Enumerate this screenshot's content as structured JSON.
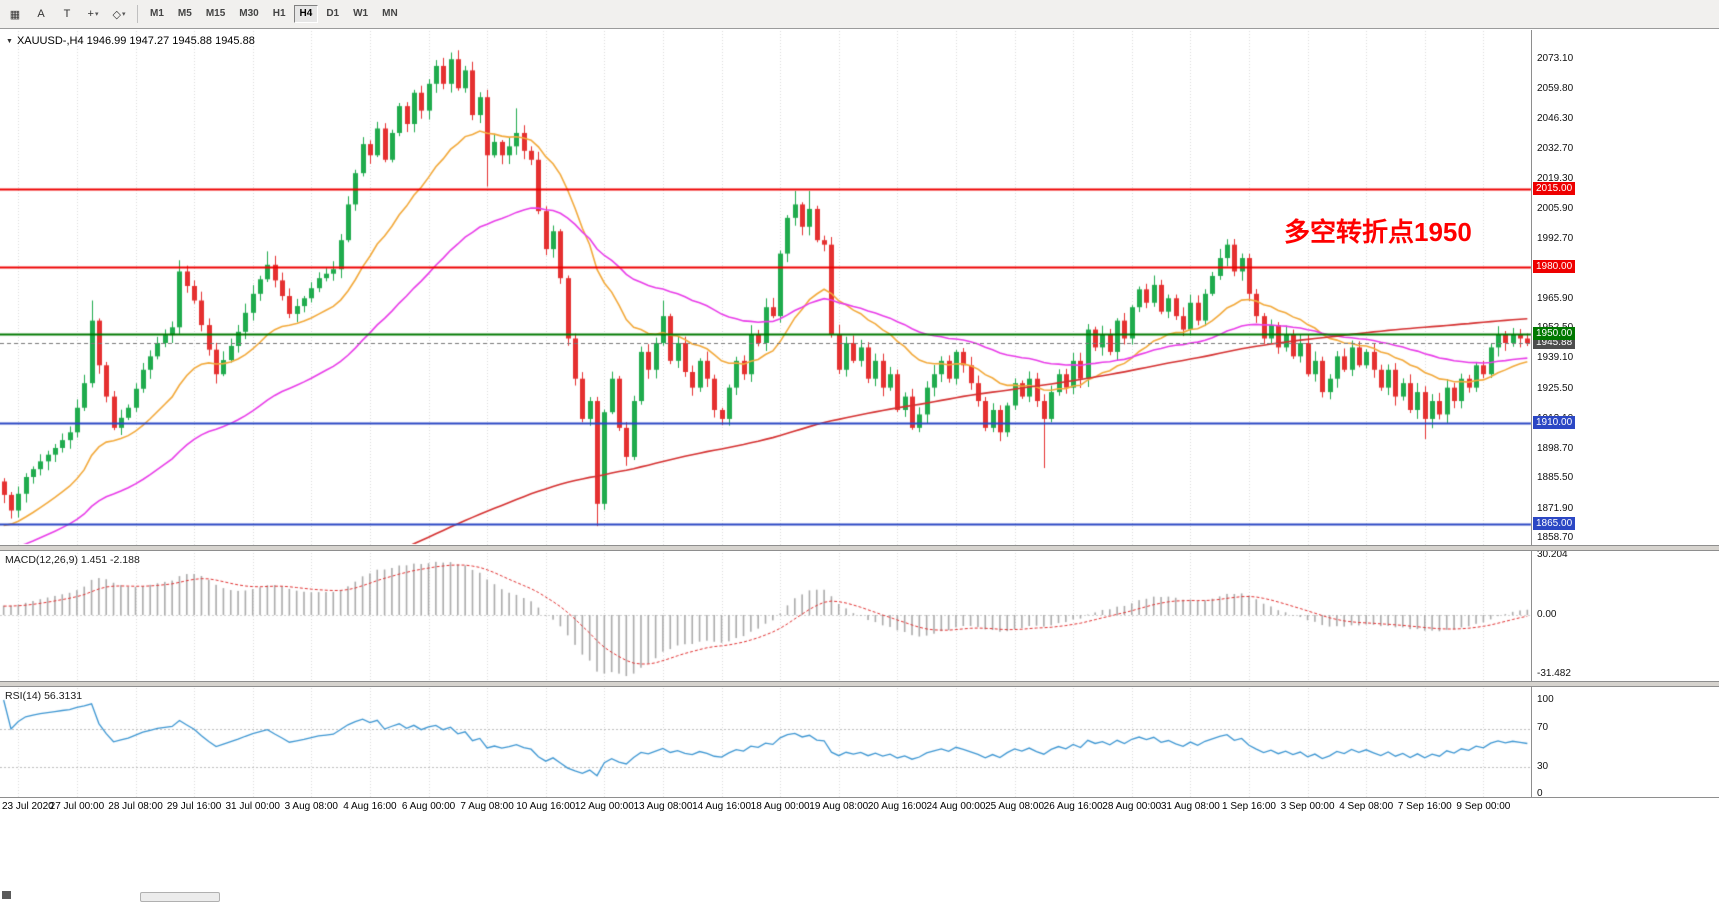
{
  "toolbar": {
    "tool_icons": [
      {
        "name": "charts-grid-icon",
        "glyph": "▦",
        "dropdown": false
      },
      {
        "name": "cursor-tool-icon",
        "glyph": "A",
        "dropdown": false
      },
      {
        "name": "text-tool-icon",
        "glyph": "T",
        "dropdown": false
      },
      {
        "name": "crosshair-tool-icon",
        "glyph": "+",
        "dropdown": true
      },
      {
        "name": "drawing-tools-icon",
        "glyph": "◇",
        "dropdown": true
      }
    ],
    "timeframes": [
      "M1",
      "M5",
      "M15",
      "M30",
      "H1",
      "H4",
      "D1",
      "W1",
      "MN"
    ],
    "selected_timeframe": "H4"
  },
  "chart": {
    "title_icon": "▼",
    "title": "XAUUSD-,H4 1946.99 1947.27 1945.88 1945.88",
    "annotation": {
      "text": "多空转折点1950",
      "color": "#ff0000"
    },
    "axis_max": 2073.1,
    "axis_min": 1858.7,
    "price_ticks": [
      "2073.10",
      "2059.80",
      "2046.30",
      "2032.70",
      "2019.30",
      "2005.90",
      "1992.70",
      "1979.30",
      "1965.90",
      "1952.50",
      "1939.10",
      "1925.50",
      "1912.10",
      "1898.70",
      "1885.50",
      "1871.90",
      "1858.70"
    ],
    "levels": [
      {
        "price": 2015.0,
        "label": "2015.00",
        "color": "#ee0000"
      },
      {
        "price": 1980.0,
        "label": "1980.00",
        "color": "#ee0000"
      },
      {
        "price": 1950.0,
        "label": "1950.00",
        "color": "#007800"
      },
      {
        "price": 1910.0,
        "label": "1910.00",
        "color": "#2b47c4"
      },
      {
        "price": 1865.0,
        "label": "1865.00",
        "color": "#2b47c4"
      }
    ],
    "current_price": {
      "value": 1945.88,
      "label": "1945.88",
      "color": "#4d4d4d"
    },
    "bull_color": "#1fab4d",
    "bear_color": "#e53030"
  },
  "indicators": {
    "macd": {
      "label": "MACD(12,26,9) 1.451 -2.188",
      "fast": 12,
      "slow": 26,
      "signal": 9,
      "axis_top": "30.204",
      "axis_zero": "0.00",
      "axis_bottom": "-31.482",
      "hist_color": "#ababab",
      "signal_color": "#e03030"
    },
    "rsi": {
      "label": "RSI(14) 56.3131",
      "period": 14,
      "value": 56.3131,
      "axis": [
        "100",
        "70",
        "30",
        "0"
      ],
      "levels": [
        70,
        30
      ],
      "line_color": "#3d96d2"
    }
  },
  "time_axis": {
    "first_index": 2,
    "step": 8,
    "labels": [
      "23 Jul 2020",
      "27 Jul 00:00",
      "28 Jul 08:00",
      "29 Jul 16:00",
      "31 Jul 00:00",
      "3 Aug 08:00",
      "4 Aug 16:00",
      "6 Aug 00:00",
      "7 Aug 08:00",
      "10 Aug 16:00",
      "12 Aug 00:00",
      "13 Aug 08:00",
      "14 Aug 16:00",
      "18 Aug 00:00",
      "19 Aug 08:00",
      "20 Aug 16:00",
      "24 Aug 00:00",
      "25 Aug 08:00",
      "26 Aug 16:00",
      "28 Aug 00:00",
      "31 Aug 08:00",
      "1 Sep 16:00",
      "3 Sep 00:00",
      "4 Sep 08:00",
      "7 Sep 16:00",
      "9 Sep 00:00"
    ]
  },
  "chart_data": {
    "type": "candlestick",
    "symbol": "XAUUSD-",
    "timeframe": "H4",
    "title": "XAUUSD-,H4",
    "ylim": [
      1858.7,
      2073.1
    ],
    "bars_total": 209,
    "first_open": 1884,
    "close_anchors": [
      [
        0,
        1878
      ],
      [
        1,
        1871
      ],
      [
        3,
        1886
      ],
      [
        5,
        1893
      ],
      [
        7,
        1899
      ],
      [
        9,
        1906
      ],
      [
        11,
        1928
      ],
      [
        12,
        1956
      ],
      [
        13,
        1936
      ],
      [
        15,
        1908
      ],
      [
        17,
        1917
      ],
      [
        19,
        1934
      ],
      [
        21,
        1946
      ],
      [
        23,
        1953
      ],
      [
        24,
        1978
      ],
      [
        26,
        1965
      ],
      [
        29,
        1932
      ],
      [
        32,
        1951
      ],
      [
        34,
        1968
      ],
      [
        36,
        1981
      ],
      [
        38,
        1967
      ],
      [
        39,
        1959
      ],
      [
        41,
        1966
      ],
      [
        43,
        1975
      ],
      [
        45,
        1979
      ],
      [
        46,
        1992
      ],
      [
        47,
        2008
      ],
      [
        48,
        2022
      ],
      [
        49,
        2035
      ],
      [
        50,
        2030
      ],
      [
        51,
        2042
      ],
      [
        52,
        2028
      ],
      [
        53,
        2040
      ],
      [
        54,
        2052
      ],
      [
        55,
        2044
      ],
      [
        56,
        2058
      ],
      [
        57,
        2050
      ],
      [
        58,
        2062
      ],
      [
        59,
        2070
      ],
      [
        60,
        2062
      ],
      [
        61,
        2073
      ],
      [
        62,
        2060
      ],
      [
        63,
        2068
      ],
      [
        64,
        2048
      ],
      [
        65,
        2056
      ],
      [
        66,
        2030
      ],
      [
        67,
        2036
      ],
      [
        68,
        2030
      ],
      [
        69,
        2034
      ],
      [
        70,
        2040
      ],
      [
        71,
        2032
      ],
      [
        72,
        2028
      ],
      [
        73,
        2005
      ],
      [
        74,
        1988
      ],
      [
        75,
        1996
      ],
      [
        76,
        1975
      ],
      [
        77,
        1948
      ],
      [
        78,
        1930
      ],
      [
        79,
        1912
      ],
      [
        80,
        1920
      ],
      [
        81,
        1874
      ],
      [
        82,
        1915
      ],
      [
        83,
        1930
      ],
      [
        84,
        1908
      ],
      [
        85,
        1895
      ],
      [
        86,
        1920
      ],
      [
        87,
        1942
      ],
      [
        88,
        1934
      ],
      [
        89,
        1946
      ],
      [
        90,
        1958
      ],
      [
        91,
        1938
      ],
      [
        92,
        1946
      ],
      [
        93,
        1933
      ],
      [
        94,
        1926
      ],
      [
        95,
        1938
      ],
      [
        96,
        1930
      ],
      [
        97,
        1916
      ],
      [
        98,
        1912
      ],
      [
        99,
        1926
      ],
      [
        100,
        1938
      ],
      [
        101,
        1932
      ],
      [
        102,
        1950
      ],
      [
        103,
        1946
      ],
      [
        104,
        1962
      ],
      [
        105,
        1958
      ],
      [
        106,
        1986
      ],
      [
        107,
        2002
      ],
      [
        108,
        2008
      ],
      [
        109,
        1998
      ],
      [
        110,
        2006
      ],
      [
        111,
        1992
      ],
      [
        112,
        1990
      ],
      [
        113,
        1950
      ],
      [
        114,
        1934
      ],
      [
        115,
        1946
      ],
      [
        116,
        1938
      ],
      [
        117,
        1944
      ],
      [
        118,
        1930
      ],
      [
        119,
        1938
      ],
      [
        120,
        1926
      ],
      [
        121,
        1932
      ],
      [
        122,
        1916
      ],
      [
        123,
        1922
      ],
      [
        124,
        1908
      ],
      [
        125,
        1914
      ],
      [
        126,
        1926
      ],
      [
        127,
        1932
      ],
      [
        128,
        1938
      ],
      [
        129,
        1930
      ],
      [
        130,
        1942
      ],
      [
        131,
        1936
      ],
      [
        132,
        1928
      ],
      [
        133,
        1920
      ],
      [
        134,
        1908
      ],
      [
        135,
        1916
      ],
      [
        136,
        1906
      ],
      [
        137,
        1918
      ],
      [
        138,
        1928
      ],
      [
        139,
        1922
      ],
      [
        140,
        1930
      ],
      [
        141,
        1920
      ],
      [
        142,
        1912
      ],
      [
        143,
        1924
      ],
      [
        144,
        1932
      ],
      [
        145,
        1926
      ],
      [
        146,
        1938
      ],
      [
        147,
        1930
      ],
      [
        148,
        1952
      ],
      [
        149,
        1944
      ],
      [
        150,
        1950
      ],
      [
        151,
        1942
      ],
      [
        152,
        1956
      ],
      [
        153,
        1948
      ],
      [
        154,
        1962
      ],
      [
        155,
        1970
      ],
      [
        156,
        1964
      ],
      [
        157,
        1972
      ],
      [
        158,
        1960
      ],
      [
        159,
        1966
      ],
      [
        160,
        1958
      ],
      [
        161,
        1952
      ],
      [
        162,
        1964
      ],
      [
        163,
        1956
      ],
      [
        164,
        1968
      ],
      [
        165,
        1976
      ],
      [
        166,
        1984
      ],
      [
        167,
        1990
      ],
      [
        168,
        1978
      ],
      [
        169,
        1984
      ],
      [
        170,
        1968
      ],
      [
        171,
        1958
      ],
      [
        172,
        1948
      ],
      [
        173,
        1954
      ],
      [
        174,
        1944
      ],
      [
        175,
        1950
      ],
      [
        176,
        1940
      ],
      [
        177,
        1946
      ],
      [
        178,
        1932
      ],
      [
        179,
        1938
      ],
      [
        180,
        1924
      ],
      [
        181,
        1930
      ],
      [
        182,
        1940
      ],
      [
        183,
        1934
      ],
      [
        184,
        1944
      ],
      [
        185,
        1936
      ],
      [
        186,
        1942
      ],
      [
        187,
        1934
      ],
      [
        188,
        1926
      ],
      [
        189,
        1934
      ],
      [
        190,
        1922
      ],
      [
        191,
        1928
      ],
      [
        192,
        1916
      ],
      [
        193,
        1924
      ],
      [
        194,
        1912
      ],
      [
        195,
        1920
      ],
      [
        196,
        1914
      ],
      [
        197,
        1926
      ],
      [
        198,
        1920
      ],
      [
        199,
        1930
      ],
      [
        200,
        1926
      ],
      [
        201,
        1936
      ],
      [
        202,
        1932
      ],
      [
        203,
        1944
      ],
      [
        204,
        1950
      ],
      [
        205,
        1946
      ],
      [
        206,
        1950
      ],
      [
        207,
        1948
      ],
      [
        208,
        1945.9
      ]
    ],
    "wick_overrides": {
      "12": {
        "high": 1965
      },
      "24": {
        "high": 1983
      },
      "36": {
        "high": 1987
      },
      "61": {
        "high": 2076
      },
      "66": {
        "low": 2016
      },
      "70": {
        "high": 2051
      },
      "81": {
        "low": 1864
      },
      "90": {
        "high": 1965
      },
      "108": {
        "high": 2014
      },
      "110": {
        "high": 2014
      },
      "142": {
        "low": 1890
      },
      "194": {
        "low": 1903
      }
    },
    "overlays": [
      {
        "name": "fast-ma",
        "type": "ema",
        "period": 20,
        "color": "#f2a93b"
      },
      {
        "name": "mid-ma",
        "type": "ema",
        "period": 50,
        "color": "#e83ce8"
      },
      {
        "name": "slow-ma",
        "type": "sma",
        "period": 200,
        "color": "#d43030"
      }
    ]
  }
}
